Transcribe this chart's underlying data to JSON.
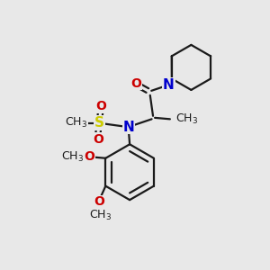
{
  "bg_color": "#e8e8e8",
  "bond_color": "#1a1a1a",
  "N_color": "#0000cc",
  "O_color": "#cc0000",
  "S_color": "#cccc00",
  "line_width": 1.6,
  "font_size": 10,
  "xlim": [
    0,
    10
  ],
  "ylim": [
    0,
    10
  ]
}
